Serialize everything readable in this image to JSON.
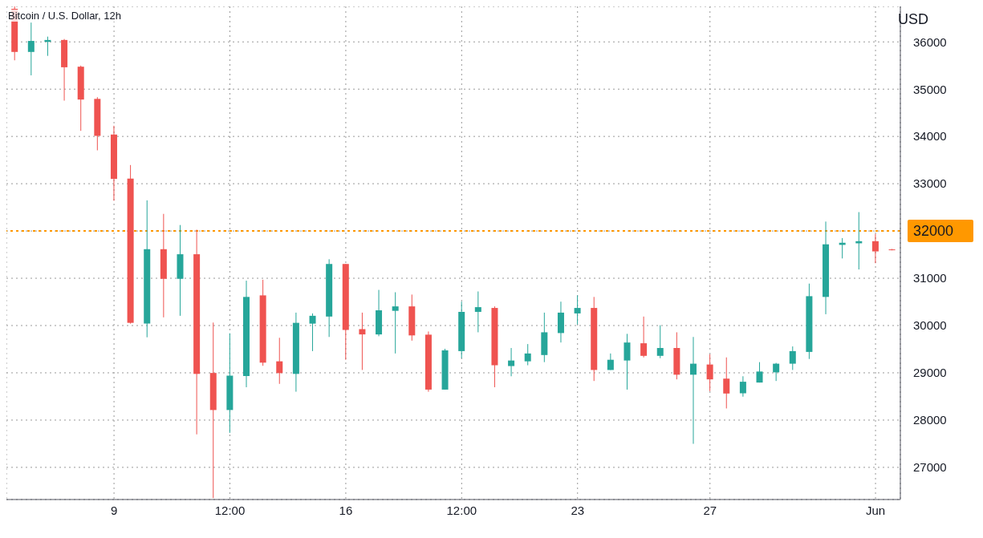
{
  "chart_data": {
    "type": "candlestick",
    "title": "Bitcoin / U.S. Dollar, 12h",
    "ylabel": "USD",
    "categories": [
      null,
      null,
      null,
      null,
      null,
      null,
      "9",
      null,
      null,
      null,
      null,
      null,
      null,
      "12:00",
      null,
      null,
      null,
      null,
      null,
      null,
      "16",
      null,
      null,
      null,
      null,
      null,
      null,
      "12:00",
      null,
      null,
      null,
      null,
      null,
      null,
      "23",
      null,
      null,
      null,
      null,
      null,
      null,
      null,
      "27",
      null,
      null,
      null,
      null,
      null,
      null,
      null,
      null,
      null,
      "Jun",
      null
    ],
    "ohlc": [
      [
        36700,
        36750,
        35610,
        35787
      ],
      [
        35787,
        36408,
        35292,
        36020
      ],
      [
        36000,
        36111,
        35704,
        36040
      ],
      [
        36040,
        36061,
        34757,
        35463
      ],
      [
        35475,
        35498,
        34118,
        34780
      ],
      [
        34794,
        34830,
        33706,
        34012
      ],
      [
        34040,
        34226,
        32640,
        33101
      ],
      [
        33108,
        33395,
        30040,
        30057
      ],
      [
        30042,
        32648,
        29751,
        31615
      ],
      [
        31615,
        32362,
        30173,
        30988
      ],
      [
        30988,
        32126,
        30206,
        31508
      ],
      [
        31508,
        32027,
        27698,
        28977
      ],
      [
        28997,
        30063,
        26350,
        28213
      ],
      [
        28213,
        29836,
        27730,
        28940
      ],
      [
        28932,
        30949,
        28695,
        30605
      ],
      [
        30638,
        30968,
        29148,
        29215
      ],
      [
        29243,
        29741,
        28766,
        28994
      ],
      [
        28977,
        30273,
        28600,
        30057
      ],
      [
        30040,
        30256,
        29459,
        30206
      ],
      [
        30190,
        31402,
        29758,
        31302
      ],
      [
        31302,
        31302,
        29276,
        29907
      ],
      [
        29924,
        30273,
        29060,
        29812
      ],
      [
        29812,
        30754,
        29774,
        30322
      ],
      [
        30311,
        30704,
        29409,
        30405
      ],
      [
        30405,
        30655,
        29680,
        29791
      ],
      [
        29807,
        29874,
        28600,
        28645
      ],
      [
        28645,
        29508,
        28645,
        29475
      ],
      [
        29459,
        30505,
        29309,
        30289
      ],
      [
        30289,
        30721,
        29857,
        30389
      ],
      [
        30372,
        30405,
        28695,
        29160
      ],
      [
        29143,
        29525,
        28927,
        29260
      ],
      [
        29243,
        29608,
        29160,
        29409
      ],
      [
        29376,
        30273,
        29226,
        29857
      ],
      [
        29841,
        30505,
        29641,
        30273
      ],
      [
        30256,
        30638,
        30023,
        30372
      ],
      [
        30372,
        30605,
        28827,
        29060
      ],
      [
        29060,
        29409,
        29060,
        29276
      ],
      [
        29260,
        29824,
        28645,
        29641
      ],
      [
        29625,
        30190,
        29326,
        29359
      ],
      [
        29359,
        30007,
        29309,
        29525
      ],
      [
        29525,
        29857,
        28861,
        28960
      ],
      [
        28960,
        29758,
        27498,
        29193
      ],
      [
        29176,
        29392,
        28612,
        28861
      ],
      [
        28877,
        29326,
        28246,
        28562
      ],
      [
        28567,
        28927,
        28495,
        28811
      ],
      [
        28794,
        29226,
        28794,
        29027
      ],
      [
        29010,
        29210,
        28827,
        29193
      ],
      [
        29193,
        29558,
        29060,
        29459
      ],
      [
        29442,
        30887,
        29293,
        30621
      ],
      [
        30605,
        32199,
        30239,
        31718
      ],
      [
        31706,
        31850,
        31419,
        31751
      ],
      [
        31739,
        32399,
        31186,
        31784
      ],
      [
        31784,
        31934,
        31319,
        31568
      ],
      [
        31610,
        31620,
        31590,
        31600
      ]
    ],
    "colors": [
      "#ef5350",
      "#26a69a",
      "#26a69a",
      "#ef5350",
      "#ef5350",
      "#ef5350",
      "#ef5350",
      "#ef5350",
      "#26a69a",
      "#ef5350",
      "#26a69a",
      "#ef5350",
      "#ef5350",
      "#26a69a",
      "#26a69a",
      "#ef5350",
      "#ef5350",
      "#26a69a",
      "#26a69a",
      "#26a69a",
      "#ef5350",
      "#ef5350",
      "#26a69a",
      "#26a69a",
      "#ef5350",
      "#ef5350",
      "#26a69a",
      "#26a69a",
      "#26a69a",
      "#ef5350",
      "#26a69a",
      "#26a69a",
      "#26a69a",
      "#26a69a",
      "#26a69a",
      "#ef5350",
      "#26a69a",
      "#26a69a",
      "#ef5350",
      "#26a69a",
      "#ef5350",
      "#26a69a",
      "#ef5350",
      "#ef5350",
      "#26a69a",
      "#26a69a",
      "#26a69a",
      "#26a69a",
      "#26a69a",
      "#26a69a",
      "#26a69a",
      "#26a69a",
      "#ef5350",
      "#ef5350"
    ],
    "ylim": [
      26320,
      36750
    ],
    "yticks": [
      27000,
      28000,
      29000,
      30000,
      31000,
      32000,
      33000,
      34000,
      35000,
      36000
    ],
    "grid": true,
    "ref_lines": [
      {
        "axis": "y",
        "value": 32000,
        "color": "#ff9800",
        "line_style": "dotted"
      }
    ]
  }
}
